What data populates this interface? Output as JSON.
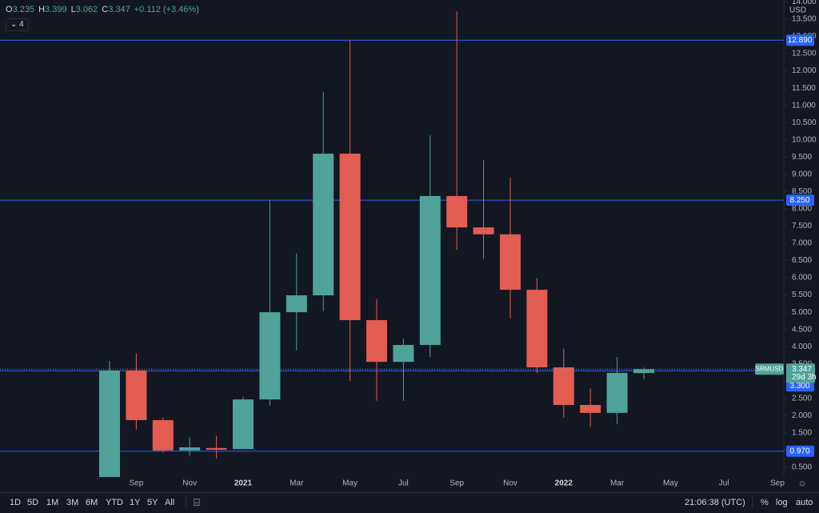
{
  "chart_data": {
    "type": "candlestick",
    "symbol": "SRMUSD",
    "countdown": "29d 3h",
    "currency": "USD",
    "up_color": "#4fa398",
    "down_color": "#e35d52",
    "line_color": "#2962ff",
    "categories": [
      null,
      "Sep",
      null,
      "Nov",
      null,
      "2021",
      null,
      "Mar",
      null,
      "May",
      null,
      "Jul",
      null,
      "Sep",
      null,
      "Nov",
      null,
      "2022",
      null,
      "Mar",
      null,
      "May",
      null,
      "Jul",
      null,
      "Sep"
    ],
    "open": [
      0.2,
      3.31,
      1.87,
      0.99,
      1.06,
      1.03,
      2.47,
      5.0,
      5.49,
      9.6,
      4.77,
      3.56,
      4.05,
      8.37,
      7.46,
      7.26,
      5.65,
      3.4,
      2.31,
      2.08,
      3.235,
      null,
      null,
      null,
      null,
      null
    ],
    "high": [
      3.59,
      3.8,
      1.94,
      1.36,
      1.41,
      2.54,
      8.25,
      6.7,
      11.39,
      12.89,
      5.38,
      4.24,
      10.13,
      13.73,
      9.41,
      8.9,
      5.98,
      3.94,
      2.78,
      3.7,
      3.399,
      null,
      null,
      null,
      null,
      null
    ],
    "low": [
      0.15,
      1.59,
      0.92,
      0.83,
      0.76,
      1.03,
      2.29,
      3.89,
      5.03,
      3.01,
      2.43,
      2.43,
      3.7,
      6.81,
      6.54,
      4.82,
      3.24,
      1.94,
      1.68,
      1.75,
      3.062,
      null,
      null,
      null,
      null,
      null
    ],
    "close": [
      3.31,
      1.87,
      0.99,
      1.08,
      1.01,
      2.47,
      5.0,
      5.49,
      9.6,
      4.77,
      3.56,
      4.05,
      8.37,
      7.46,
      7.26,
      5.65,
      3.4,
      2.31,
      2.08,
      3.24,
      3.347,
      null,
      null,
      null,
      null,
      null
    ],
    "change": {
      "value": 0.112,
      "label": "+0.112"
    },
    "change_percent": {
      "value": 3.46,
      "label": "(+3.46%)"
    },
    "ohlc_labels": [
      "O",
      "H",
      "L",
      "C"
    ],
    "indicator_count": 4,
    "ylim": [
      0.22,
      14.057
    ],
    "yticks": [
      {
        "value": 0.5,
        "label": "0.500"
      },
      {
        "value": 1.0,
        "label": "1.000"
      },
      {
        "value": 1.5,
        "label": "1.500"
      },
      {
        "value": 2.0,
        "label": "2.000"
      },
      {
        "value": 2.5,
        "label": "2.500"
      },
      {
        "value": 3.0,
        "label": "3.000"
      },
      {
        "value": 3.5,
        "label": "3.500"
      },
      {
        "value": 4.0,
        "label": "4.000"
      },
      {
        "value": 4.5,
        "label": "4.500"
      },
      {
        "value": 5.0,
        "label": "5.000"
      },
      {
        "value": 5.5,
        "label": "5.500"
      },
      {
        "value": 6.0,
        "label": "6.000"
      },
      {
        "value": 6.5,
        "label": "6.500"
      },
      {
        "value": 7.0,
        "label": "7.000"
      },
      {
        "value": 7.5,
        "label": "7.500"
      },
      {
        "value": 8.0,
        "label": "8.000"
      },
      {
        "value": 8.5,
        "label": "8.500"
      },
      {
        "value": 9.0,
        "label": "9.000"
      },
      {
        "value": 9.5,
        "label": "9.500"
      },
      {
        "value": 10.0,
        "label": "10.000"
      },
      {
        "value": 10.5,
        "label": "10.500"
      },
      {
        "value": 11.0,
        "label": "11.000"
      },
      {
        "value": 11.5,
        "label": "11.500"
      },
      {
        "value": 12.0,
        "label": "12.000"
      },
      {
        "value": 12.5,
        "label": "12.500"
      },
      {
        "value": 13.0,
        "label": "13.000"
      },
      {
        "value": 13.5,
        "label": "13.500"
      },
      {
        "value": 14.0,
        "label": "14.000"
      }
    ],
    "levels": [
      {
        "value": 12.89,
        "label": "12.890"
      },
      {
        "value": 8.25,
        "label": "8.250"
      },
      {
        "value": 3.3,
        "label": "3.300"
      },
      {
        "value": 0.97,
        "label": "0.970"
      }
    ]
  },
  "toolbar": {
    "ranges": [
      "1D",
      "5D",
      "1M",
      "3M",
      "6M",
      "YTD",
      "1Y",
      "5Y",
      "All"
    ],
    "clock": "21:06:38 (UTC)",
    "percent": "%",
    "log": "log",
    "auto": "auto"
  }
}
